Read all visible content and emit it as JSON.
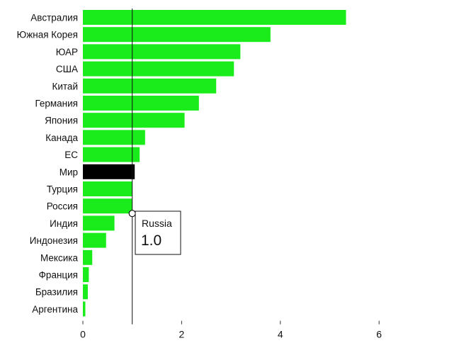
{
  "chart_data": {
    "type": "bar",
    "orientation": "horizontal",
    "categories": [
      "Австралия",
      "Южная Корея",
      "ЮАР",
      "США",
      "Китай",
      "Германия",
      "Япония",
      "Канада",
      "ЕС",
      "Мир",
      "Турция",
      "Россия",
      "Индия",
      "Индонезия",
      "Мексика",
      "Франция",
      "Бразилия",
      "Аргентина"
    ],
    "values": [
      5.33,
      3.8,
      3.19,
      3.06,
      2.7,
      2.35,
      2.06,
      1.26,
      1.15,
      1.05,
      1.0,
      1.0,
      0.64,
      0.47,
      0.19,
      0.12,
      0.1,
      0.05
    ],
    "highlight_category": "Мир",
    "bar_color": "#1aeb1a",
    "highlight_color": "#000000",
    "xlim": [
      0,
      7.5
    ],
    "xticks": [
      0,
      2,
      4,
      6
    ],
    "reference_line": 1.0,
    "tooltip": {
      "category": "Россия",
      "title": "Russia",
      "value": "1.0"
    },
    "grid": false
  }
}
